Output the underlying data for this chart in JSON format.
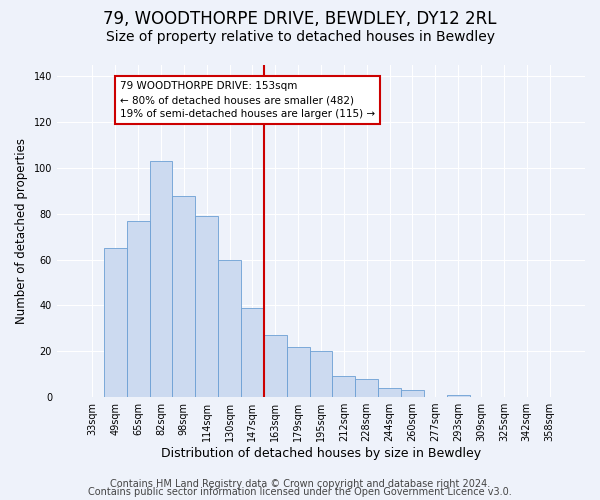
{
  "title": "79, WOODTHORPE DRIVE, BEWDLEY, DY12 2RL",
  "subtitle": "Size of property relative to detached houses in Bewdley",
  "xlabel": "Distribution of detached houses by size in Bewdley",
  "ylabel": "Number of detached properties",
  "bar_labels": [
    "33sqm",
    "49sqm",
    "65sqm",
    "82sqm",
    "98sqm",
    "114sqm",
    "130sqm",
    "147sqm",
    "163sqm",
    "179sqm",
    "195sqm",
    "212sqm",
    "228sqm",
    "244sqm",
    "260sqm",
    "277sqm",
    "293sqm",
    "309sqm",
    "325sqm",
    "342sqm",
    "358sqm"
  ],
  "bar_heights": [
    0,
    65,
    77,
    103,
    88,
    79,
    60,
    39,
    27,
    22,
    20,
    9,
    8,
    4,
    3,
    0,
    1,
    0,
    0,
    0,
    0
  ],
  "bar_color": "#ccdaf0",
  "bar_edgecolor": "#6b9fd4",
  "vline_color": "#cc0000",
  "annotation_text": "79 WOODTHORPE DRIVE: 153sqm\n← 80% of detached houses are smaller (482)\n19% of semi-detached houses are larger (115) →",
  "annotation_box_facecolor": "#ffffff",
  "annotation_box_edgecolor": "#cc0000",
  "ylim": [
    0,
    145
  ],
  "yticks": [
    0,
    20,
    40,
    60,
    80,
    100,
    120,
    140
  ],
  "footer1": "Contains HM Land Registry data © Crown copyright and database right 2024.",
  "footer2": "Contains public sector information licensed under the Open Government Licence v3.0.",
  "background_color": "#eef2fa",
  "plot_bg_color": "#eef2fa",
  "grid_color": "#ffffff",
  "title_fontsize": 12,
  "subtitle_fontsize": 10,
  "xlabel_fontsize": 9,
  "ylabel_fontsize": 8.5,
  "tick_fontsize": 7,
  "footer_fontsize": 7,
  "annotation_fontsize": 7.5
}
